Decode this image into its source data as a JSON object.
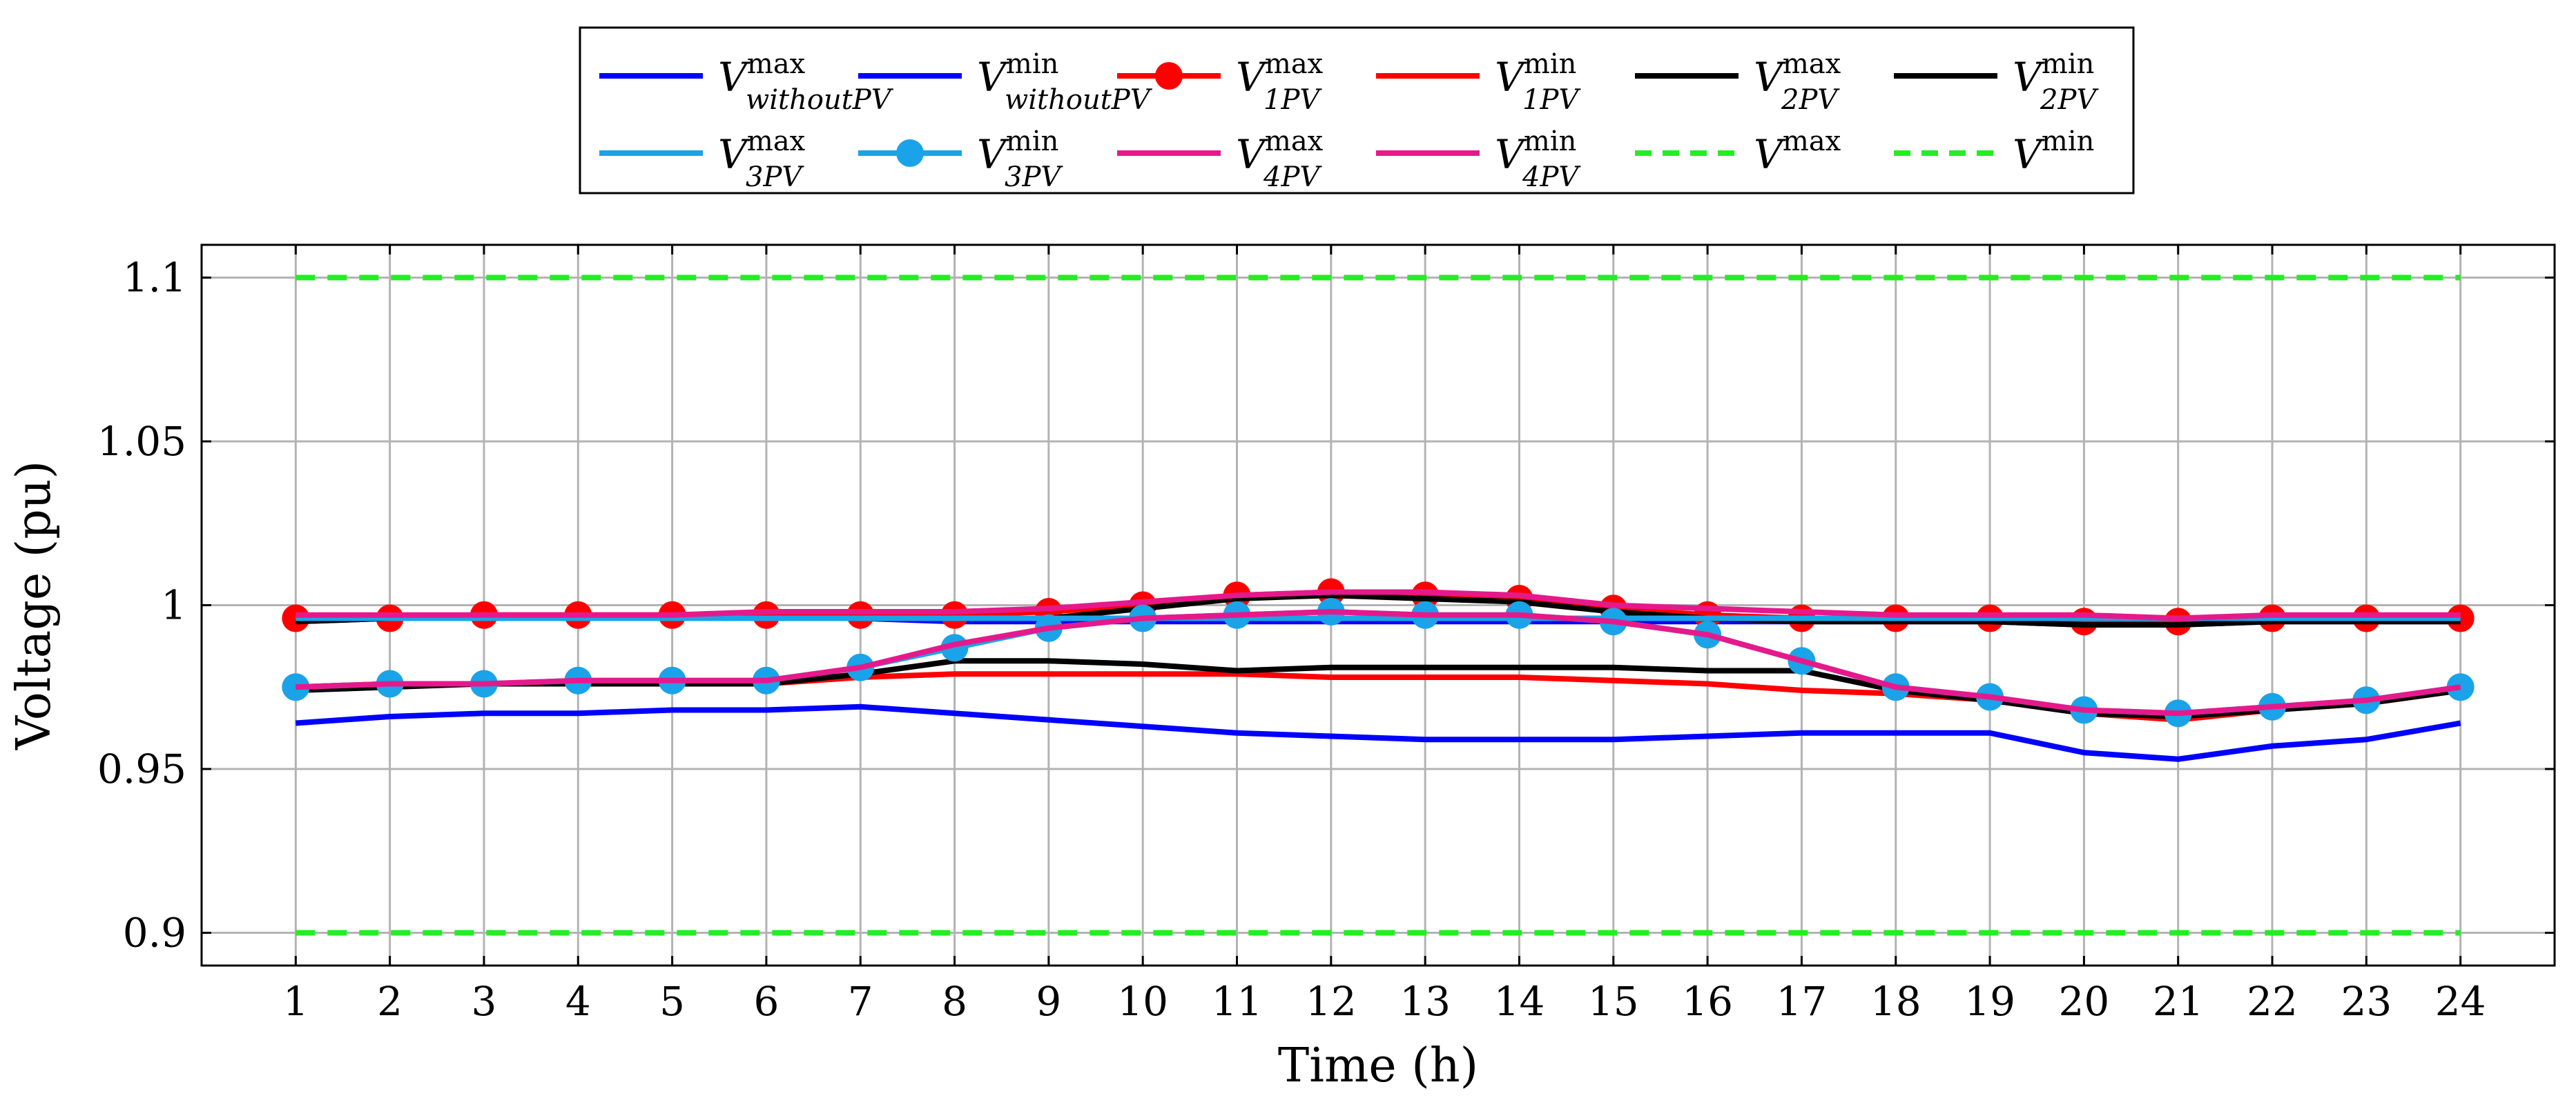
{
  "chart_data": {
    "type": "line",
    "xlabel": "Time (h)",
    "ylabel": "Voltage (pu)",
    "xlim": [
      0,
      25
    ],
    "ylim": [
      0.89,
      1.11
    ],
    "x_ticks": [
      1,
      2,
      3,
      4,
      5,
      6,
      7,
      8,
      9,
      10,
      11,
      12,
      13,
      14,
      15,
      16,
      17,
      18,
      19,
      20,
      21,
      22,
      23,
      24
    ],
    "y_ticks": [
      0.9,
      0.95,
      1,
      1.05,
      1.1
    ],
    "y_tick_labels": [
      "0.9",
      "0.95",
      "1",
      "1.05",
      "1.1"
    ],
    "grid": true,
    "legend_placement": "top-center, outside plot",
    "x": [
      1,
      2,
      3,
      4,
      5,
      6,
      7,
      8,
      9,
      10,
      11,
      12,
      13,
      14,
      15,
      16,
      17,
      18,
      19,
      20,
      21,
      22,
      23,
      24
    ],
    "series": [
      {
        "name": "V_withoutPV^max",
        "label_base": "V",
        "label_sup": "max",
        "label_sub": "withoutPV",
        "color": "#0000ff",
        "dash": "solid",
        "marker": "none",
        "values": [
          0.995,
          0.996,
          0.996,
          0.996,
          0.996,
          0.996,
          0.996,
          0.995,
          0.995,
          0.995,
          0.995,
          0.995,
          0.995,
          0.995,
          0.995,
          0.995,
          0.995,
          0.995,
          0.995,
          0.994,
          0.994,
          0.995,
          0.995,
          0.995
        ]
      },
      {
        "name": "V_withoutPV^min",
        "label_base": "V",
        "label_sup": "min",
        "label_sub": "withoutPV",
        "color": "#0000ff",
        "dash": "solid",
        "marker": "none",
        "values": [
          0.964,
          0.966,
          0.967,
          0.967,
          0.968,
          0.968,
          0.969,
          0.967,
          0.965,
          0.963,
          0.961,
          0.96,
          0.959,
          0.959,
          0.959,
          0.96,
          0.961,
          0.961,
          0.961,
          0.955,
          0.953,
          0.957,
          0.959,
          0.964
        ]
      },
      {
        "name": "V_1PV^max",
        "label_base": "V",
        "label_sup": "max",
        "label_sub": "1PV",
        "color": "#ff0000",
        "dash": "solid",
        "marker": "circle",
        "values": [
          0.996,
          0.996,
          0.997,
          0.997,
          0.997,
          0.997,
          0.997,
          0.997,
          0.998,
          1.0,
          1.003,
          1.004,
          1.003,
          1.002,
          0.999,
          0.997,
          0.996,
          0.996,
          0.996,
          0.995,
          0.995,
          0.996,
          0.996,
          0.996
        ]
      },
      {
        "name": "V_1PV^min",
        "label_base": "V",
        "label_sup": "min",
        "label_sub": "1PV",
        "color": "#ff0000",
        "dash": "solid",
        "marker": "none",
        "values": [
          0.975,
          0.976,
          0.976,
          0.976,
          0.976,
          0.976,
          0.978,
          0.979,
          0.979,
          0.979,
          0.979,
          0.978,
          0.978,
          0.978,
          0.977,
          0.976,
          0.974,
          0.973,
          0.971,
          0.967,
          0.965,
          0.968,
          0.97,
          0.974
        ]
      },
      {
        "name": "V_2PV^max",
        "label_base": "V",
        "label_sup": "max",
        "label_sub": "2PV",
        "color": "#000000",
        "dash": "solid",
        "marker": "none",
        "values": [
          0.995,
          0.996,
          0.996,
          0.996,
          0.996,
          0.996,
          0.996,
          0.996,
          0.996,
          0.999,
          1.002,
          1.003,
          1.002,
          1.001,
          0.998,
          0.996,
          0.995,
          0.995,
          0.995,
          0.994,
          0.994,
          0.995,
          0.995,
          0.995
        ]
      },
      {
        "name": "V_2PV^min",
        "label_base": "V",
        "label_sup": "min",
        "label_sub": "2PV",
        "color": "#000000",
        "dash": "solid",
        "marker": "none",
        "values": [
          0.974,
          0.975,
          0.976,
          0.976,
          0.976,
          0.976,
          0.979,
          0.983,
          0.983,
          0.982,
          0.98,
          0.981,
          0.981,
          0.981,
          0.981,
          0.98,
          0.98,
          0.974,
          0.971,
          0.967,
          0.966,
          0.968,
          0.97,
          0.974
        ]
      },
      {
        "name": "V_3PV^max",
        "label_base": "V",
        "label_sup": "max",
        "label_sub": "3PV",
        "color": "#1aa3e8",
        "dash": "solid",
        "marker": "none",
        "values": [
          0.996,
          0.996,
          0.996,
          0.996,
          0.996,
          0.996,
          0.996,
          0.996,
          0.996,
          0.996,
          0.996,
          0.996,
          0.996,
          0.996,
          0.996,
          0.996,
          0.996,
          0.996,
          0.996,
          0.996,
          0.996,
          0.996,
          0.996,
          0.996
        ]
      },
      {
        "name": "V_3PV^min",
        "label_base": "V",
        "label_sup": "min",
        "label_sub": "3PV",
        "color": "#1aa3e8",
        "dash": "solid",
        "marker": "circle",
        "values": [
          0.975,
          0.976,
          0.976,
          0.977,
          0.977,
          0.977,
          0.981,
          0.987,
          0.993,
          0.996,
          0.997,
          0.998,
          0.997,
          0.997,
          0.995,
          0.991,
          0.983,
          0.975,
          0.972,
          0.968,
          0.967,
          0.969,
          0.971,
          0.975
        ]
      },
      {
        "name": "V_4PV^max",
        "label_base": "V",
        "label_sup": "max",
        "label_sub": "4PV",
        "color": "#e6198c",
        "dash": "solid",
        "marker": "none",
        "values": [
          0.997,
          0.997,
          0.997,
          0.997,
          0.997,
          0.998,
          0.998,
          0.998,
          0.999,
          1.001,
          1.003,
          1.004,
          1.004,
          1.003,
          1.0,
          0.999,
          0.998,
          0.997,
          0.997,
          0.997,
          0.996,
          0.997,
          0.997,
          0.997
        ]
      },
      {
        "name": "V_4PV^min",
        "label_base": "V",
        "label_sup": "min",
        "label_sub": "4PV",
        "color": "#e6198c",
        "dash": "solid",
        "marker": "none",
        "values": [
          0.975,
          0.976,
          0.976,
          0.977,
          0.977,
          0.977,
          0.981,
          0.988,
          0.993,
          0.996,
          0.997,
          0.998,
          0.997,
          0.997,
          0.995,
          0.991,
          0.983,
          0.975,
          0.972,
          0.968,
          0.967,
          0.969,
          0.971,
          0.975
        ]
      },
      {
        "name": "V^max",
        "label_base": "V",
        "label_sup": "max",
        "label_sub": "",
        "color": "#22ee22",
        "dash": "dashed",
        "marker": "none",
        "values": [
          1.1,
          1.1,
          1.1,
          1.1,
          1.1,
          1.1,
          1.1,
          1.1,
          1.1,
          1.1,
          1.1,
          1.1,
          1.1,
          1.1,
          1.1,
          1.1,
          1.1,
          1.1,
          1.1,
          1.1,
          1.1,
          1.1,
          1.1,
          1.1
        ]
      },
      {
        "name": "V^min",
        "label_base": "V",
        "label_sup": "min",
        "label_sub": "",
        "color": "#22ee22",
        "dash": "dashed",
        "marker": "none",
        "values": [
          0.9,
          0.9,
          0.9,
          0.9,
          0.9,
          0.9,
          0.9,
          0.9,
          0.9,
          0.9,
          0.9,
          0.9,
          0.9,
          0.9,
          0.9,
          0.9,
          0.9,
          0.9,
          0.9,
          0.9,
          0.9,
          0.9,
          0.9,
          0.9
        ]
      }
    ]
  }
}
